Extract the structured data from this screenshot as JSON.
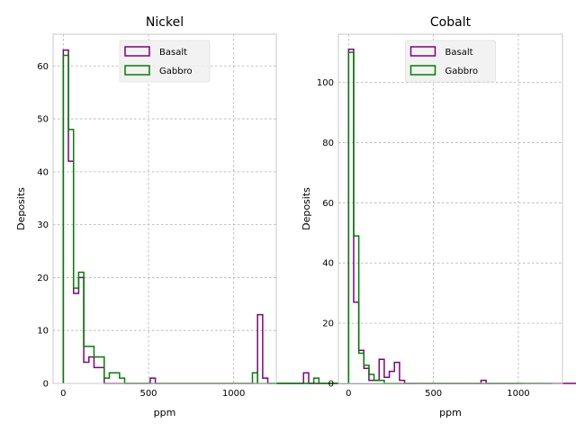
{
  "chart_data": [
    {
      "type": "histogram",
      "title": "Nickel",
      "xlabel": "ppm",
      "ylabel": "Deposits",
      "xlim": [
        -60,
        1250
      ],
      "ylim": [
        0,
        66
      ],
      "xticks": [
        0,
        500,
        1000
      ],
      "yticks": [
        0,
        10,
        20,
        30,
        40,
        50,
        60
      ],
      "grid": true,
      "legend_position": "top-center",
      "series": [
        {
          "name": "Basalt",
          "color": "#800080",
          "bin_width": 30,
          "bin_start": 0,
          "counts": [
            63,
            42,
            17,
            20,
            4,
            5,
            3,
            3,
            0,
            0,
            0,
            0,
            0,
            0,
            0,
            0,
            0,
            1,
            0,
            0,
            0,
            0,
            0,
            0,
            0,
            0,
            0,
            0,
            0,
            0,
            0,
            0,
            0,
            0,
            0,
            0,
            0,
            0,
            13,
            1,
            0,
            0,
            0,
            0,
            0,
            0,
            0,
            2,
            0,
            0,
            0,
            0,
            0,
            0,
            0,
            0,
            0,
            0,
            0,
            0,
            0,
            0,
            0,
            0,
            0,
            0,
            0,
            0,
            0,
            1,
            0,
            0,
            0,
            0,
            0,
            0,
            0,
            0,
            0,
            0,
            0,
            0,
            0,
            0,
            0,
            0,
            0,
            0,
            0,
            0
          ]
        },
        {
          "name": "Gabbro",
          "color": "#008000",
          "bin_width": 30,
          "bin_start": 0,
          "counts": [
            62,
            48,
            18,
            21,
            7,
            7,
            5,
            5,
            1,
            2,
            2,
            1,
            0,
            0,
            0,
            0,
            0,
            0,
            0,
            0,
            0,
            0,
            0,
            0,
            0,
            0,
            0,
            0,
            0,
            0,
            0,
            0,
            0,
            0,
            0,
            0,
            0,
            2,
            0,
            0,
            0,
            0,
            0,
            0,
            0,
            0,
            0,
            0,
            0,
            1,
            0,
            0,
            0,
            0,
            0,
            0,
            0,
            0,
            0,
            0,
            0,
            0,
            0,
            0,
            0,
            0,
            0,
            0,
            0,
            0,
            0,
            0,
            0,
            0,
            0,
            0,
            0,
            0,
            0,
            0,
            0,
            0,
            0,
            0,
            0,
            0,
            0,
            0,
            0,
            1
          ]
        }
      ]
    },
    {
      "type": "histogram",
      "title": "Cobalt",
      "xlabel": "ppm",
      "ylabel": "Deposits",
      "xlim": [
        -60,
        1260
      ],
      "ylim": [
        0,
        116
      ],
      "xticks": [
        0,
        500,
        1000
      ],
      "yticks": [
        0,
        20,
        40,
        60,
        80,
        100
      ],
      "grid": true,
      "legend_position": "top-center",
      "series": [
        {
          "name": "Basalt",
          "color": "#800080",
          "bin_width": 30,
          "bin_start": 0,
          "counts": [
            111,
            27,
            11,
            5,
            1,
            1,
            8,
            2,
            4,
            7,
            1,
            0,
            0,
            0,
            0,
            0,
            0,
            0,
            0,
            0,
            0,
            0,
            0,
            0,
            0,
            0,
            1,
            0,
            0,
            0,
            0,
            0,
            0,
            0,
            0,
            0,
            0,
            0,
            0,
            0,
            0,
            0,
            0,
            0,
            0,
            0,
            0,
            0,
            0,
            0,
            0,
            0,
            0,
            0,
            0,
            0,
            0,
            0,
            0,
            0,
            0,
            0,
            0,
            0,
            0,
            0,
            0,
            0,
            0,
            0,
            0,
            0,
            0,
            0,
            0,
            0,
            0,
            0,
            0,
            0,
            0,
            0,
            0,
            0,
            0,
            0,
            0,
            0,
            0,
            0
          ]
        },
        {
          "name": "Gabbro",
          "color": "#008000",
          "bin_width": 30,
          "bin_start": 0,
          "counts": [
            110,
            49,
            10,
            6,
            3,
            1,
            1,
            0,
            0,
            0,
            0,
            0,
            0,
            0,
            0,
            0,
            0,
            0,
            0,
            0,
            0,
            0,
            0,
            0,
            0,
            0,
            0,
            0,
            0,
            0,
            0,
            0,
            0,
            0,
            0,
            0,
            0,
            0,
            0,
            0
          ]
        }
      ]
    }
  ]
}
